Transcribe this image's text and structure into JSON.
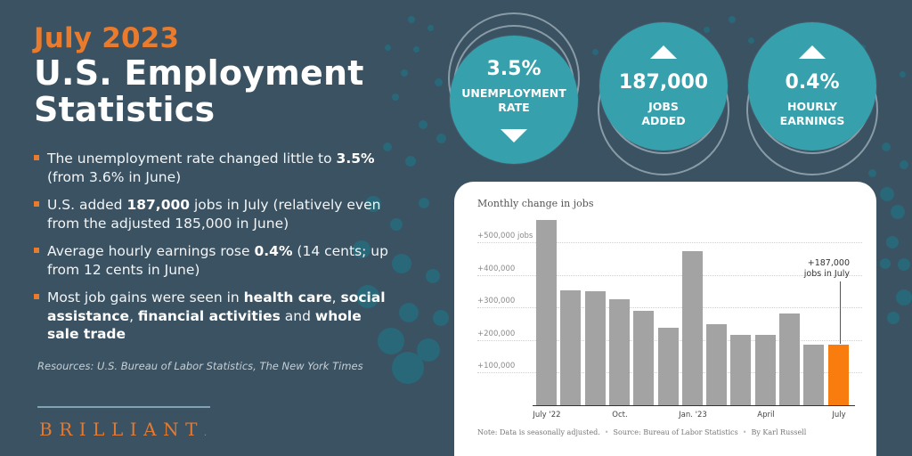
{
  "header": {
    "kicker": "July 2023",
    "title_line1": "U.S. Employment",
    "title_line2": "Statistics"
  },
  "bullets": [
    {
      "pre": "The unemployment rate changed little to ",
      "bold": "3.5%",
      "post": " (from 3.6% in June)"
    },
    {
      "pre": "U.S. added ",
      "bold": "187,000",
      "post": " jobs in July (relatively even from the adjusted 185,000 in June)"
    },
    {
      "pre": "Average hourly earnings rose ",
      "bold": "0.4%",
      "post": " (14 cents; up from 12 cents in June)"
    },
    {
      "pre": "Most job gains were seen in ",
      "bold": "health care",
      "mid1": ", ",
      "bold2": "social assistance",
      "mid2": ", ",
      "bold3": "financial activities",
      "mid3": " and ",
      "bold4": "whole sale trade"
    }
  ],
  "resources": "Resources: U.S. Bureau of Labor Statistics, The New York Times",
  "brand": {
    "name": "BRILLIANT",
    "mark": "."
  },
  "stats": [
    {
      "value": "3.5%",
      "label_line1": "UNEMPLOYMENT",
      "label_line2": "RATE",
      "trend": "down",
      "trend_icon": "triangle-down-icon"
    },
    {
      "value": "187,000",
      "label_line1": "JOBS",
      "label_line2": "ADDED",
      "trend": "up",
      "trend_icon": "triangle-up-icon"
    },
    {
      "value": "0.4%",
      "label_line1": "HOURLY",
      "label_line2": "EARNINGS",
      "trend": "up",
      "trend_icon": "triangle-up-icon"
    }
  ],
  "colors": {
    "background": "#3a5262",
    "accent_orange": "#ea7a2c",
    "circle_teal": "#36a0ad",
    "bar_gray": "#a3a3a3",
    "bar_highlight": "#f97c0f"
  },
  "chart": {
    "title": "Monthly change in jobs",
    "y_ticks": [
      "+100,000",
      "+200,000",
      "+300,000",
      "+400,000",
      "+500,000 jobs"
    ],
    "x_ticks": [
      "July '22",
      "Oct.",
      "Jan. '23",
      "April",
      "July"
    ],
    "annotation_line1": "+187,000",
    "annotation_line2": "jobs in July",
    "note": "Note: Data is seasonally adjusted.",
    "source": "Source: Bureau of Labor Statistics",
    "byline": "By Karl Russell"
  },
  "chart_data": {
    "type": "bar",
    "title": "Monthly change in jobs",
    "xlabel": "",
    "ylabel": "Jobs",
    "categories": [
      "Jul 2022",
      "Aug 2022",
      "Sep 2022",
      "Oct 2022",
      "Nov 2022",
      "Dec 2022",
      "Jan 2023",
      "Feb 2023",
      "Mar 2023",
      "Apr 2023",
      "May 2023",
      "Jun 2023",
      "Jul 2023"
    ],
    "values": [
      568000,
      352000,
      350000,
      324000,
      290000,
      239000,
      472000,
      248000,
      217000,
      217000,
      281000,
      185000,
      187000
    ],
    "highlight_index": 12,
    "x_tick_labels": [
      "July '22",
      "Oct.",
      "Jan. '23",
      "April",
      "July"
    ],
    "y_tick_labels": [
      "+100,000",
      "+200,000",
      "+300,000",
      "+400,000",
      "+500,000 jobs"
    ],
    "ylim": [
      0,
      600000
    ],
    "grid": true,
    "annotation": "+187,000 jobs in July"
  }
}
